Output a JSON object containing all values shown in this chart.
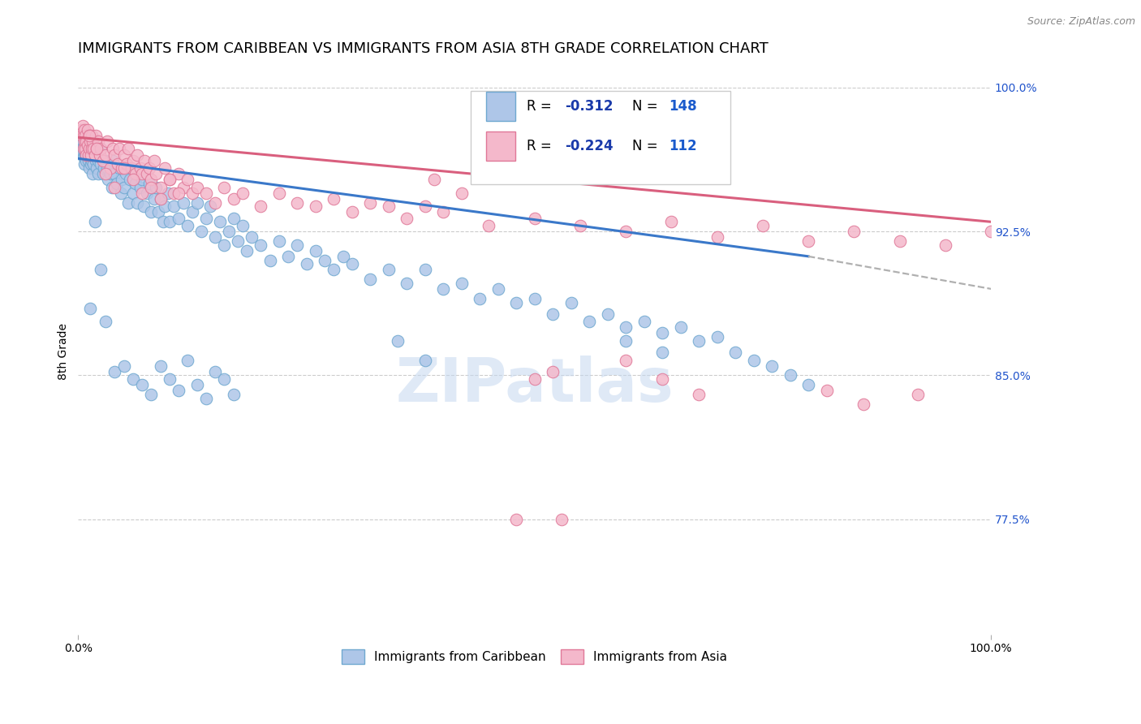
{
  "title": "IMMIGRANTS FROM CARIBBEAN VS IMMIGRANTS FROM ASIA 8TH GRADE CORRELATION CHART",
  "source_text": "Source: ZipAtlas.com",
  "ylabel": "8th Grade",
  "right_ytick_labels": [
    "100.0%",
    "92.5%",
    "85.0%",
    "77.5%"
  ],
  "right_ytick_values": [
    1.0,
    0.925,
    0.85,
    0.775
  ],
  "xlim": [
    0.0,
    1.0
  ],
  "ylim": [
    0.715,
    1.01
  ],
  "blue_R": -0.312,
  "blue_N": 148,
  "pink_R": -0.224,
  "pink_N": 112,
  "blue_color": "#aec6e8",
  "blue_edge": "#6fa8d0",
  "pink_color": "#f4b8cb",
  "pink_edge": "#e07898",
  "blue_line_color": "#3a78c9",
  "pink_line_color": "#d95f7e",
  "dashed_line_color": "#b0b0b0",
  "watermark_text": "ZIPatlas",
  "watermark_color": "#c5d8f0",
  "legend_R_color": "#1a3aaa",
  "legend_N_color": "#1a5acc",
  "background_color": "#ffffff",
  "title_fontsize": 13,
  "axis_label_fontsize": 10,
  "tick_label_fontsize": 10,
  "right_tick_color": "#2255cc",
  "grid_color": "#cccccc",
  "blue_trend": [
    0.0,
    0.963,
    0.8,
    0.912
  ],
  "blue_dashed": [
    0.8,
    0.912,
    1.06,
    0.89
  ],
  "pink_trend": [
    0.0,
    0.974,
    1.0,
    0.93
  ],
  "blue_scatter_x": [
    0.003,
    0.004,
    0.005,
    0.005,
    0.006,
    0.006,
    0.007,
    0.007,
    0.007,
    0.008,
    0.008,
    0.009,
    0.009,
    0.01,
    0.01,
    0.01,
    0.011,
    0.011,
    0.012,
    0.012,
    0.012,
    0.013,
    0.014,
    0.014,
    0.015,
    0.015,
    0.016,
    0.016,
    0.017,
    0.018,
    0.019,
    0.02,
    0.02,
    0.022,
    0.022,
    0.025,
    0.025,
    0.027,
    0.028,
    0.03,
    0.032,
    0.033,
    0.035,
    0.037,
    0.038,
    0.04,
    0.042,
    0.045,
    0.047,
    0.048,
    0.05,
    0.052,
    0.055,
    0.057,
    0.058,
    0.06,
    0.063,
    0.065,
    0.068,
    0.07,
    0.072,
    0.075,
    0.078,
    0.08,
    0.083,
    0.085,
    0.088,
    0.09,
    0.093,
    0.095,
    0.098,
    0.1,
    0.105,
    0.11,
    0.115,
    0.12,
    0.125,
    0.13,
    0.135,
    0.14,
    0.145,
    0.15,
    0.155,
    0.16,
    0.165,
    0.17,
    0.175,
    0.18,
    0.185,
    0.19,
    0.2,
    0.21,
    0.22,
    0.23,
    0.24,
    0.25,
    0.26,
    0.27,
    0.28,
    0.29,
    0.3,
    0.32,
    0.34,
    0.36,
    0.38,
    0.4,
    0.42,
    0.44,
    0.46,
    0.48,
    0.5,
    0.52,
    0.54,
    0.56,
    0.58,
    0.6,
    0.62,
    0.64,
    0.66,
    0.68,
    0.7,
    0.72,
    0.74,
    0.76,
    0.78,
    0.8,
    0.013,
    0.018,
    0.025,
    0.03,
    0.04,
    0.05,
    0.06,
    0.07,
    0.08,
    0.09,
    0.1,
    0.11,
    0.12,
    0.13,
    0.14,
    0.15,
    0.16,
    0.17,
    0.35,
    0.38,
    0.6,
    0.64
  ],
  "blue_scatter_y": [
    0.968,
    0.97,
    0.966,
    0.972,
    0.968,
    0.964,
    0.966,
    0.97,
    0.96,
    0.965,
    0.972,
    0.968,
    0.962,
    0.964,
    0.97,
    0.975,
    0.968,
    0.962,
    0.967,
    0.971,
    0.958,
    0.965,
    0.968,
    0.96,
    0.962,
    0.97,
    0.965,
    0.955,
    0.96,
    0.968,
    0.962,
    0.958,
    0.968,
    0.962,
    0.955,
    0.96,
    0.968,
    0.955,
    0.958,
    0.962,
    0.958,
    0.952,
    0.955,
    0.948,
    0.962,
    0.955,
    0.95,
    0.958,
    0.945,
    0.952,
    0.948,
    0.955,
    0.94,
    0.952,
    0.958,
    0.945,
    0.95,
    0.94,
    0.948,
    0.952,
    0.938,
    0.945,
    0.95,
    0.935,
    0.942,
    0.948,
    0.935,
    0.942,
    0.93,
    0.938,
    0.945,
    0.93,
    0.938,
    0.932,
    0.94,
    0.928,
    0.935,
    0.94,
    0.925,
    0.932,
    0.938,
    0.922,
    0.93,
    0.918,
    0.925,
    0.932,
    0.92,
    0.928,
    0.915,
    0.922,
    0.918,
    0.91,
    0.92,
    0.912,
    0.918,
    0.908,
    0.915,
    0.91,
    0.905,
    0.912,
    0.908,
    0.9,
    0.905,
    0.898,
    0.905,
    0.895,
    0.898,
    0.89,
    0.895,
    0.888,
    0.89,
    0.882,
    0.888,
    0.878,
    0.882,
    0.875,
    0.878,
    0.872,
    0.875,
    0.868,
    0.87,
    0.862,
    0.858,
    0.855,
    0.85,
    0.845,
    0.885,
    0.93,
    0.905,
    0.878,
    0.852,
    0.855,
    0.848,
    0.845,
    0.84,
    0.855,
    0.848,
    0.842,
    0.858,
    0.845,
    0.838,
    0.852,
    0.848,
    0.84,
    0.868,
    0.858,
    0.868,
    0.862
  ],
  "pink_scatter_x": [
    0.003,
    0.004,
    0.005,
    0.006,
    0.006,
    0.007,
    0.007,
    0.008,
    0.008,
    0.009,
    0.009,
    0.01,
    0.01,
    0.011,
    0.012,
    0.012,
    0.013,
    0.014,
    0.015,
    0.015,
    0.016,
    0.017,
    0.018,
    0.019,
    0.02,
    0.022,
    0.024,
    0.025,
    0.027,
    0.03,
    0.032,
    0.035,
    0.038,
    0.04,
    0.043,
    0.045,
    0.048,
    0.05,
    0.053,
    0.055,
    0.058,
    0.06,
    0.063,
    0.065,
    0.068,
    0.07,
    0.073,
    0.075,
    0.078,
    0.08,
    0.083,
    0.085,
    0.09,
    0.095,
    0.1,
    0.105,
    0.11,
    0.115,
    0.12,
    0.125,
    0.13,
    0.14,
    0.15,
    0.16,
    0.17,
    0.18,
    0.2,
    0.22,
    0.24,
    0.26,
    0.28,
    0.3,
    0.32,
    0.34,
    0.36,
    0.38,
    0.4,
    0.45,
    0.5,
    0.55,
    0.6,
    0.65,
    0.7,
    0.75,
    0.8,
    0.85,
    0.9,
    0.95,
    1.0,
    0.012,
    0.02,
    0.03,
    0.04,
    0.05,
    0.06,
    0.07,
    0.08,
    0.09,
    0.1,
    0.11,
    0.39,
    0.42,
    0.5,
    0.52,
    0.6,
    0.64,
    0.68,
    0.82,
    0.86,
    0.92,
    0.48,
    0.53
  ],
  "pink_scatter_y": [
    0.978,
    0.975,
    0.98,
    0.975,
    0.968,
    0.972,
    0.978,
    0.968,
    0.975,
    0.972,
    0.965,
    0.97,
    0.978,
    0.965,
    0.975,
    0.968,
    0.972,
    0.965,
    0.975,
    0.968,
    0.972,
    0.968,
    0.965,
    0.975,
    0.968,
    0.972,
    0.965,
    0.968,
    0.962,
    0.965,
    0.972,
    0.958,
    0.968,
    0.965,
    0.96,
    0.968,
    0.958,
    0.965,
    0.96,
    0.968,
    0.958,
    0.962,
    0.955,
    0.965,
    0.958,
    0.955,
    0.962,
    0.955,
    0.958,
    0.952,
    0.962,
    0.955,
    0.948,
    0.958,
    0.952,
    0.945,
    0.955,
    0.948,
    0.952,
    0.945,
    0.948,
    0.945,
    0.94,
    0.948,
    0.942,
    0.945,
    0.938,
    0.945,
    0.94,
    0.938,
    0.942,
    0.935,
    0.94,
    0.938,
    0.932,
    0.938,
    0.935,
    0.928,
    0.932,
    0.928,
    0.925,
    0.93,
    0.922,
    0.928,
    0.92,
    0.925,
    0.92,
    0.918,
    0.925,
    0.975,
    0.968,
    0.955,
    0.948,
    0.958,
    0.952,
    0.945,
    0.948,
    0.942,
    0.952,
    0.945,
    0.952,
    0.945,
    0.848,
    0.852,
    0.858,
    0.848,
    0.84,
    0.842,
    0.835,
    0.84,
    0.775,
    0.775
  ]
}
